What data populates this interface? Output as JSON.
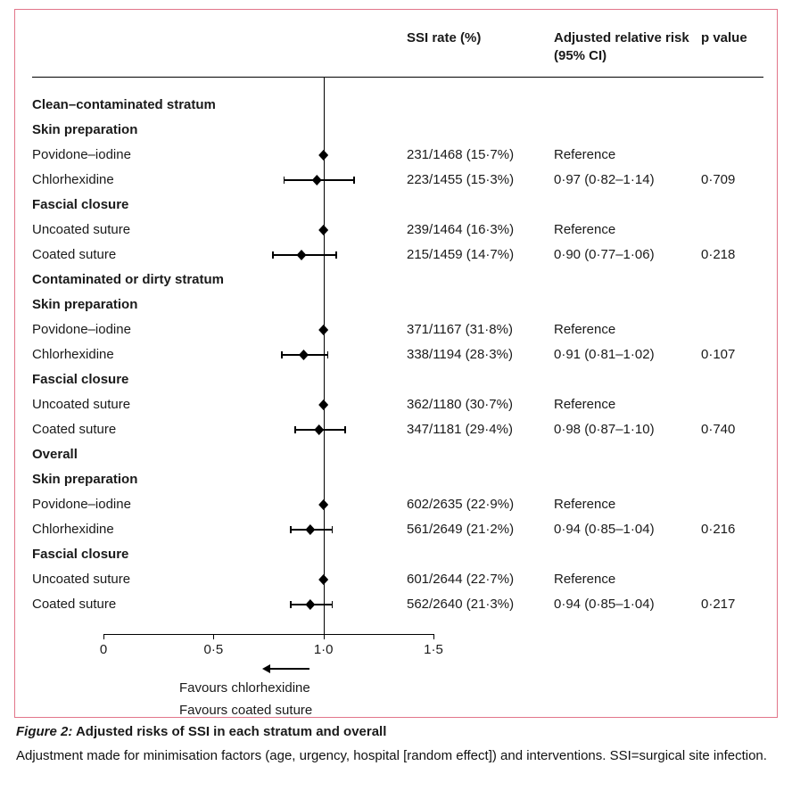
{
  "figure": {
    "border_color": "#e2758a",
    "columns": {
      "ssi_rate": "SSI rate (%)",
      "adjusted_rr": "Adjusted relative risk (95% CI)",
      "p_value": "p value"
    },
    "favours": {
      "line1": "Favours chlorhexidine",
      "line2": "Favours coated suture"
    }
  },
  "caption": {
    "label": "Figure 2:",
    "title": " Adjusted risks of SSI in each stratum and overall",
    "body": "Adjustment made for minimisation factors (age, urgency, hospital [random effect]) and interventions. SSI=surgical site infection."
  },
  "chart_data": {
    "type": "forest",
    "title": "Adjusted risks of SSI in each stratum and overall",
    "xlabel": "Adjusted relative risk (95% CI)",
    "axis": {
      "min": 0,
      "max": 1.5,
      "tick_values": [
        0,
        0.5,
        1.0,
        1.5
      ],
      "tick_labels": [
        "0",
        "0·5",
        "1·0",
        "1·5"
      ],
      "reference_line": 1.0
    },
    "rows": [
      {
        "type": "heading",
        "label": "Clean–contaminated stratum"
      },
      {
        "type": "heading",
        "label": "Skin preparation"
      },
      {
        "type": "data",
        "label": "Povidone–iodine",
        "ssi_rate": "231/1468 (15·7%)",
        "rr_text": "Reference",
        "p_value": "",
        "estimate": 1.0,
        "ci_low": null,
        "ci_high": null
      },
      {
        "type": "data",
        "label": "Chlorhexidine",
        "ssi_rate": "223/1455 (15·3%)",
        "rr_text": "0·97 (0·82–1·14)",
        "p_value": "0·709",
        "estimate": 0.97,
        "ci_low": 0.82,
        "ci_high": 1.14
      },
      {
        "type": "heading",
        "label": "Fascial closure"
      },
      {
        "type": "data",
        "label": "Uncoated suture",
        "ssi_rate": "239/1464 (16·3%)",
        "rr_text": "Reference",
        "p_value": "",
        "estimate": 1.0,
        "ci_low": null,
        "ci_high": null
      },
      {
        "type": "data",
        "label": "Coated suture",
        "ssi_rate": "215/1459 (14·7%)",
        "rr_text": "0·90 (0·77–1·06)",
        "p_value": "0·218",
        "estimate": 0.9,
        "ci_low": 0.77,
        "ci_high": 1.06
      },
      {
        "type": "heading",
        "label": "Contaminated or dirty stratum"
      },
      {
        "type": "heading",
        "label": "Skin preparation"
      },
      {
        "type": "data",
        "label": "Povidone–iodine",
        "ssi_rate": "371/1167 (31·8%)",
        "rr_text": "Reference",
        "p_value": "",
        "estimate": 1.0,
        "ci_low": null,
        "ci_high": null
      },
      {
        "type": "data",
        "label": "Chlorhexidine",
        "ssi_rate": "338/1194 (28·3%)",
        "rr_text": "0·91 (0·81–1·02)",
        "p_value": "0·107",
        "estimate": 0.91,
        "ci_low": 0.81,
        "ci_high": 1.02
      },
      {
        "type": "heading",
        "label": "Fascial closure"
      },
      {
        "type": "data",
        "label": "Uncoated suture",
        "ssi_rate": "362/1180 (30·7%)",
        "rr_text": "Reference",
        "p_value": "",
        "estimate": 1.0,
        "ci_low": null,
        "ci_high": null
      },
      {
        "type": "data",
        "label": "Coated suture",
        "ssi_rate": "347/1181 (29·4%)",
        "rr_text": "0·98 (0·87–1·10)",
        "p_value": "0·740",
        "estimate": 0.98,
        "ci_low": 0.87,
        "ci_high": 1.1
      },
      {
        "type": "heading",
        "label": "Overall"
      },
      {
        "type": "heading",
        "label": "Skin preparation"
      },
      {
        "type": "data",
        "label": "Povidone–iodine",
        "ssi_rate": "602/2635 (22·9%)",
        "rr_text": "Reference",
        "p_value": "",
        "estimate": 1.0,
        "ci_low": null,
        "ci_high": null
      },
      {
        "type": "data",
        "label": "Chlorhexidine",
        "ssi_rate": "561/2649 (21·2%)",
        "rr_text": "0·94 (0·85–1·04)",
        "p_value": "0·216",
        "estimate": 0.94,
        "ci_low": 0.85,
        "ci_high": 1.04
      },
      {
        "type": "heading",
        "label": "Fascial closure"
      },
      {
        "type": "data",
        "label": "Uncoated suture",
        "ssi_rate": "601/2644 (22·7%)",
        "rr_text": "Reference",
        "p_value": "",
        "estimate": 1.0,
        "ci_low": null,
        "ci_high": null
      },
      {
        "type": "data",
        "label": "Coated suture",
        "ssi_rate": "562/2640 (21·3%)",
        "rr_text": "0·94 (0·85–1·04)",
        "p_value": "0·217",
        "estimate": 0.94,
        "ci_low": 0.85,
        "ci_high": 1.04
      }
    ]
  }
}
